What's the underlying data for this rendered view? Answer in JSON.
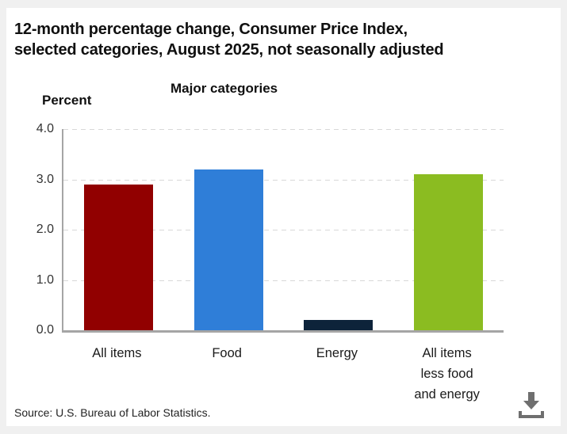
{
  "header": {
    "title_line1": "12-month percentage change, Consumer Price Index,",
    "title_line2": "selected categories, August 2025, not seasonally adjusted"
  },
  "footer": {
    "source": "Source: U.S. Bureau of Labor Statistics."
  },
  "icons": {
    "download": "download-icon"
  },
  "colors": {
    "axis": "#a5a5a5",
    "gridline": "#d8d8d8",
    "icon": "#6f6f6f"
  },
  "chart_data": {
    "type": "bar",
    "title": "Major categories",
    "ylabel": "Percent",
    "xlabel": "",
    "categories": [
      "All items",
      "Food",
      "Energy",
      "All items less food and energy"
    ],
    "values": [
      2.9,
      3.2,
      0.2,
      3.1
    ],
    "bar_colors": [
      "#910000",
      "#2f7ed8",
      "#0d233a",
      "#8bbc21"
    ],
    "ylim": [
      0,
      4.0
    ],
    "yticks": [
      "4.0",
      "3.0",
      "2.0",
      "1.0",
      "0.0"
    ],
    "grid": "horizontal dashed",
    "legend": "none"
  }
}
